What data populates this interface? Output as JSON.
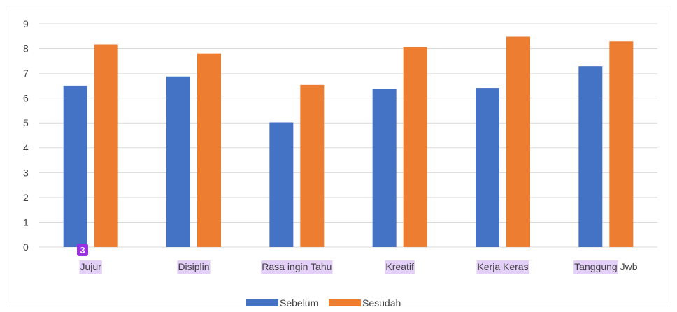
{
  "colors": {
    "sebelum": "#4472c4",
    "sesudah": "#ed7d31",
    "grid": "#d9d9d9",
    "highlight": "#e3cff7",
    "badge": "#9b30e0"
  },
  "badge": {
    "text": "3"
  },
  "chart_data": {
    "type": "bar",
    "categories": [
      {
        "highlighted": "Jujur",
        "rest": ""
      },
      {
        "highlighted": "Disiplin",
        "rest": ""
      },
      {
        "highlighted": "Rasa ingin Tahu",
        "rest": ""
      },
      {
        "highlighted": "Kreatif",
        "rest": ""
      },
      {
        "highlighted": "Kerja Keras",
        "rest": ""
      },
      {
        "highlighted": "Tanggung",
        "rest": " Jwb"
      }
    ],
    "series": [
      {
        "name": "Sebelum",
        "values": [
          6.5,
          6.87,
          5.02,
          6.36,
          6.41,
          7.28
        ]
      },
      {
        "name": "Sesudah",
        "values": [
          8.17,
          7.8,
          6.53,
          8.05,
          8.48,
          8.29
        ]
      }
    ],
    "ylim": [
      0,
      9
    ],
    "yticks": [
      "0",
      "1",
      "2",
      "3",
      "4",
      "5",
      "6",
      "7",
      "8",
      "9"
    ],
    "grid": true,
    "legend": "bottom"
  }
}
